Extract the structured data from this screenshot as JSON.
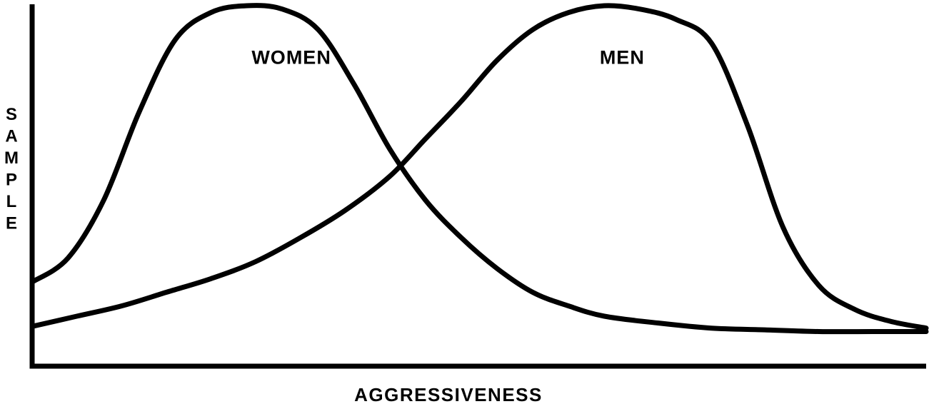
{
  "chart_data": {
    "type": "line",
    "title": "",
    "xlabel": "AGGRESSIVENESS",
    "ylabel": "SAMPLE",
    "xlim": [
      0,
      1
    ],
    "ylim": [
      0,
      1
    ],
    "grid": false,
    "legend": "none",
    "ticks": false,
    "series": [
      {
        "name": "WOMEN",
        "x": [
          0,
          0.04,
          0.08,
          0.12,
          0.16,
          0.2,
          0.24,
          0.28,
          0.32,
          0.36,
          0.4,
          0.44,
          0.48,
          0.52,
          0.56,
          0.6,
          0.64,
          0.7,
          0.76,
          0.82,
          0.88,
          0.94,
          1.0
        ],
        "y": [
          0.19,
          0.26,
          0.43,
          0.69,
          0.9,
          0.98,
          1.0,
          0.99,
          0.93,
          0.77,
          0.58,
          0.43,
          0.32,
          0.23,
          0.16,
          0.12,
          0.09,
          0.07,
          0.055,
          0.05,
          0.045,
          0.045,
          0.045
        ]
      },
      {
        "name": "MEN",
        "x": [
          0,
          0.05,
          0.1,
          0.15,
          0.2,
          0.25,
          0.3,
          0.35,
          0.4,
          0.44,
          0.48,
          0.52,
          0.56,
          0.6,
          0.64,
          0.68,
          0.72,
          0.76,
          0.8,
          0.84,
          0.88,
          0.92,
          0.96,
          1.0
        ],
        "y": [
          0.06,
          0.09,
          0.12,
          0.16,
          0.2,
          0.25,
          0.32,
          0.4,
          0.5,
          0.61,
          0.72,
          0.84,
          0.93,
          0.98,
          1.0,
          0.99,
          0.96,
          0.89,
          0.65,
          0.35,
          0.18,
          0.11,
          0.075,
          0.055
        ]
      }
    ],
    "annotations": [
      {
        "text": "WOMEN",
        "x": 0.29,
        "y": 0.83
      },
      {
        "text": "MEN",
        "x": 0.66,
        "y": 0.83
      }
    ]
  }
}
